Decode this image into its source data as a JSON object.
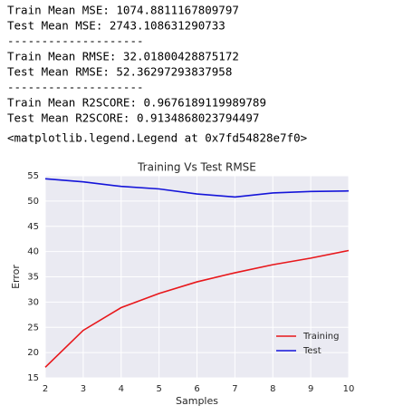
{
  "output_lines": [
    "Train Mean MSE: 1074.8811167809797",
    "Test Mean MSE: 2743.108631290733",
    "--------------------",
    "Train Mean RMSE: 32.01800428875172",
    "Test Mean RMSE: 52.36297293837958",
    "--------------------",
    "Train Mean R2SCORE: 0.9676189119989789",
    "Test Mean R2SCORE: 0.9134868023794497",
    "<matplotlib.legend.Legend at 0x7fd54828e7f0>"
  ],
  "chart_data": {
    "type": "line",
    "title": "Training Vs Test RMSE",
    "x_label": "Samples",
    "y_label": "Error",
    "x": [
      2,
      3,
      4,
      5,
      6,
      7,
      8,
      9,
      10
    ],
    "series": [
      {
        "name": "Training",
        "color": "#e8171b",
        "values": [
          17.1,
          24.4,
          28.9,
          31.7,
          34.0,
          35.8,
          37.4,
          38.7,
          40.2
        ]
      },
      {
        "name": "Test",
        "color": "#1414d9",
        "values": [
          54.4,
          53.8,
          52.9,
          52.4,
          51.4,
          50.8,
          51.6,
          51.9,
          52.0
        ]
      }
    ],
    "xlim": [
      2,
      10
    ],
    "xticks": [
      2,
      3,
      4,
      5,
      6,
      7,
      8,
      9,
      10
    ],
    "ylim": [
      15,
      55
    ],
    "yticks": [
      15,
      20,
      25,
      30,
      35,
      40,
      45,
      50,
      55
    ],
    "grid": true,
    "legend": "lower right"
  }
}
